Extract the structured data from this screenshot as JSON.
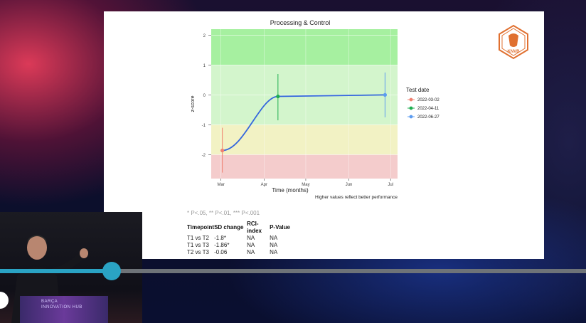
{
  "chart_data": {
    "type": "line",
    "title": "Processing & Control",
    "xlabel": "Time (months)",
    "ylabel": "z-score",
    "x_ticks": [
      "Mar",
      "Apr",
      "May",
      "Jun",
      "Jul"
    ],
    "y_ticks": [
      "2",
      "1",
      "0",
      "-1",
      "-2"
    ],
    "ylim": [
      -2.8,
      2.2
    ],
    "bands": [
      {
        "from": 1,
        "to": 2.2,
        "color": "#a6f0a0"
      },
      {
        "from": -1,
        "to": 1,
        "color": "#d3f5cc"
      },
      {
        "from": -2,
        "to": -1,
        "color": "#f2f2c4"
      },
      {
        "from": -2.8,
        "to": -2,
        "color": "#f4cccc"
      }
    ],
    "points": [
      {
        "date": "2022-03-02",
        "y": -1.86,
        "err_low": -2.6,
        "err_high": -1.1,
        "color": "#f08070"
      },
      {
        "date": "2022-04-11",
        "y": -0.05,
        "err_low": -0.85,
        "err_high": 0.7,
        "color": "#1fae50"
      },
      {
        "date": "2022-06-27",
        "y": 0.0,
        "err_low": -0.75,
        "err_high": 0.75,
        "color": "#5c9cf0"
      }
    ],
    "legend_title": "Test date",
    "legend": [
      "2022-03-02",
      "2022-04-11",
      "2022-06-27"
    ],
    "legend_position": "right",
    "caption": "Higher values reflect better performance"
  },
  "footnote": "* P<.05, ** P<.01, *** P<.001",
  "table": {
    "headers": [
      "Timepoint",
      "SD change",
      "RCI-index",
      "P-Value"
    ],
    "rows": [
      [
        "T1 vs T2",
        "-1.8*",
        "NA",
        "NA"
      ],
      [
        "T1 vs T3",
        "-1.86*",
        "NA",
        "NA"
      ],
      [
        "T2 vs T3",
        "-0.06",
        "NA",
        "NA"
      ]
    ]
  },
  "logo_text": "KNVB",
  "webcam": {
    "podium_line1": "BARÇA",
    "podium_line2": "INNOVATION HUB"
  },
  "player": {
    "progress": 0.19
  }
}
